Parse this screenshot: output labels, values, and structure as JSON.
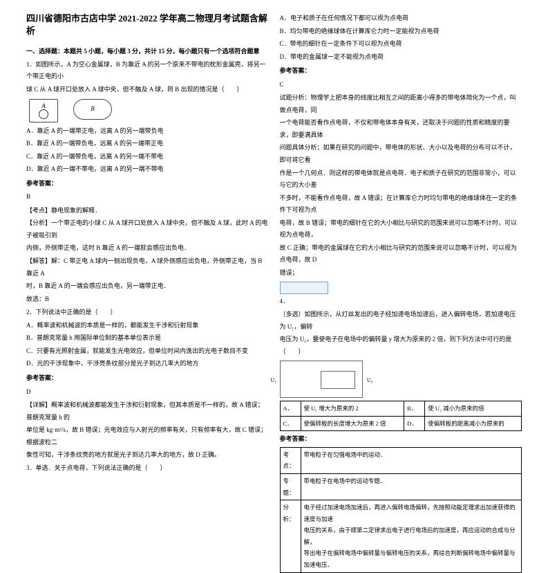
{
  "title": "四川省德阳市古店中学 2021-2022 学年高二物理月考试题含解析",
  "section1_head": "一、选择题：本题共 5 小题，每小题 3 分，共计 15 分，每小题只有一个选项符合题意",
  "q1_stem1": "1．如图所示，A 为空心金属球，B 为靠近 A 的另一个原来不带电的枕形金属壳，将另一个带正电的小",
  "q1_stem2": "球 C 从 A 球开口处放入 A 球中央，但不触及 A 球，则 B 出现的情况是（　　）",
  "fig_a_label": "A",
  "fig_b_label": "B",
  "q1_a": "A．靠近 A 的一端带正电，远离 A 的另一端带负电",
  "q1_b": "B．靠近 A 的一端带负电，远离 A 的另一端带正电",
  "q1_c": "C．靠近 A 的一端带负电，远离 A 的另一端不带电",
  "q1_d": "D．靠近 A 的一端不带电，远离 A 的另一端不带电",
  "ref_head": "参考答案：",
  "q1_ans": "B",
  "q1_kaodian": "【考点】静电现象的解释．",
  "q1_fx1": "【分析】一个带正电的小球 C 从 A 球开口处放入 A 球中央，但不触及 A 球，此时 A 的电子被吸引到",
  "q1_fx2": "内侧，外侧带正电，这时 B 靠近 A 的一端就会感应出负电．",
  "q1_jd1": "【解答】解：C 带正电 A 球内一侧出现负电，A 球外侧感应出负电，外侧带正电，当 B 靠近 A",
  "q1_jd2": "时，B 靠近 A 的一端会感应出负电，另一端带正电．",
  "q1_jd3": "故选：B",
  "q2_stem": "2．下列说法中正确的是（　　）",
  "q2_a": "A．概率波和机械波的本质是一样的，都能发生干涉和衍射现象",
  "q2_b": "B．普朗克常量 h 用国际单位制的基本单位表示是",
  "q2_c": "C．只要有光照射金属，就能发生光电效应，但单位时间内逸出的光电子数目不变",
  "q2_d": "D．光的干涉现象中，干涉亮条纹部分是光子到达几率大的地方",
  "q2_ans": "D",
  "q2_jx1": "【详解】概率波和机械波都能发生干涉和衍射现象，但其本质是不一样的，故 A 错误；普朗克常量 h 的",
  "q2_jx2": "单位是 kg·m²/s，故 B 错误；光电效应与入射光的频率有关，只有频率有大，故 C 错误；根据波粒二",
  "q2_jx3": "象性可知，干涉条纹亮的地方就是光子到达几率大的地方，故 D 正确。",
  "q2_jx4": "3．单选．关于点电荷，下列说法正确的是（　　）",
  "rcol_a": "A．电子和质子在任何情况下都可以视为点电荷",
  "rcol_b": "B．均匀带电的绝缘球体在计算库仑力时一定能视为点电荷",
  "rcol_c": "C．带电的细针在一定条件下可以视为点电荷",
  "rcol_d": "D．带电的金属球一定不能视为点电荷",
  "r_ans": "C",
  "r_fx1": "试题分析：物理学上把本身的线度比相互之间的距离小得多的带电体简化为一个点，叫做点电荷，同",
  "r_fx2": "一个电荷能否看作点电荷，不仅和带电体本身有关，还取决于问题的性质和精度的要求，即要满具体",
  "r_fx3": "问题具体分析；如果在研究的问题中，带电体的形状、大小以及电荷的分布可以不计，即可将它看",
  "r_fx4": "作是一个几何点．则这样的带电体就是点电荷．电子和质子在研究的范围非常小，可以与它的大小差",
  "r_fx5": "不多时，不能看作点电荷，故 A 错误；在计算库仑力时均匀带电的绝缘球体在一定的条件下可视为点",
  "r_fx6": "电荷，故 B 错误；带电的细针在它的大小相比与研究的范围来说可以忽略不计时，可以视为点电荷，",
  "r_fx7": "故 C 正确；带电的金属球在它的大小相比与研究的范围来说可以忽略不计时，可以视为点电荷，故 D",
  "r_fx8": "错误；",
  "q4_num": "4．",
  "q5_stem1": "（多选）如图所示，从灯丝发出的电子经加速电场加速后，进入偏转电场，若加速电压为 U₁，偏转",
  "q5_stem2": "电压为 U₂，要使电子在电场中的偏转量 y 增大为原来的 2 倍，则下列方法中可行的是（　　）",
  "circ_u1": "U₁",
  "circ_u0": "U₀",
  "tbl_a": "使 U₁ 增大为原来的 2",
  "tbl_b": "使 U₂ 减小为原来的倍",
  "tbl_c": "使偏转板的长度增大为原来 2 倍",
  "tbl_d": "使偏转板的距离减小为原来的",
  "tbl_al": "A．",
  "tbl_bl": "B．",
  "tbl_cl": "C．",
  "tbl_dl": "D．",
  "kdrow_l": "考点：",
  "kdrow_r": "带电粒子在匀强电场中的运动．",
  "ztrow_l": "专题：",
  "ztrow_r": "带电粒子在电场中的运动专题．",
  "fxrow_l": "分析：",
  "fxrow_r1": "电子经过加速电场加速后，再进入偏转电场偏转，先按照动能定理求出加速获得的速度与加速",
  "fxrow_r2": "电压的关系，由于顺第二定律求出电子进行电场后的加速度，再应运动的合成与分解，",
  "fxrow_r3": "导出电子在偏转电场中偏转量与偏转电压的关系，再综合判断偏转电场中偏转量与加速电压、"
}
